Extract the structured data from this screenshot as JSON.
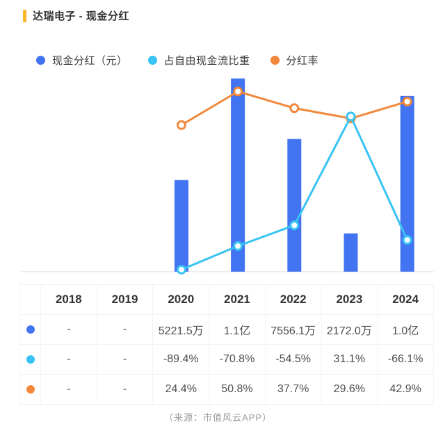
{
  "page": {
    "title": "达瑞电子 - 现金分红",
    "source_note": "（来源：市值风云APP）"
  },
  "colors": {
    "accent": "#FFB42E",
    "bar_blue": "#4273F0",
    "line_cyan": "#38C3F4",
    "line_orange": "#F2883C",
    "axis_line": "#ededed",
    "table_border": "#f3f3f3"
  },
  "legend": [
    {
      "label": "现金分红（元）",
      "color": "#4273F0"
    },
    {
      "label": "占自由现金流比重",
      "color": "#38C3F4"
    },
    {
      "label": "分红率",
      "color": "#F2883C"
    }
  ],
  "chart_data": {
    "type": "combo-bar-line",
    "title": "达瑞电子 - 现金分红",
    "categories": [
      "2018",
      "2019",
      "2020",
      "2021",
      "2022",
      "2023",
      "2024"
    ],
    "series": [
      {
        "name": "现金分红（元）",
        "type": "bar",
        "axis": "amount",
        "unit": "万元",
        "color": "#4273F0",
        "values": [
          null,
          null,
          5221.5,
          11000,
          7556.1,
          2172.0,
          10000
        ],
        "labels": [
          "-",
          "-",
          "5221.5万",
          "1.1亿",
          "7556.1万",
          "2172.0万",
          "1.0亿"
        ]
      },
      {
        "name": "占自由现金流比重",
        "type": "line",
        "axis": "percent",
        "unit": "%",
        "color": "#38C3F4",
        "values": [
          null,
          null,
          -89.4,
          -70.8,
          -54.5,
          31.1,
          -66.1
        ],
        "labels": [
          "-",
          "-",
          "-89.4%",
          "-70.8%",
          "-54.5%",
          "31.1%",
          "-66.1%"
        ]
      },
      {
        "name": "分红率",
        "type": "line",
        "axis": "percent",
        "unit": "%",
        "color": "#F2883C",
        "values": [
          null,
          null,
          24.4,
          50.8,
          37.7,
          29.6,
          42.9
        ],
        "labels": [
          "-",
          "-",
          "24.4%",
          "50.8%",
          "37.7%",
          "29.6%",
          "42.9%"
        ]
      }
    ],
    "amount_axis": {
      "min": 0,
      "max": 11500
    },
    "percent_axis": {
      "min": -91,
      "max": 68
    },
    "grid": false,
    "legend_position": "top",
    "x_axis_labels_shown_in": "table"
  },
  "table": {
    "first_column_header": ""
  }
}
